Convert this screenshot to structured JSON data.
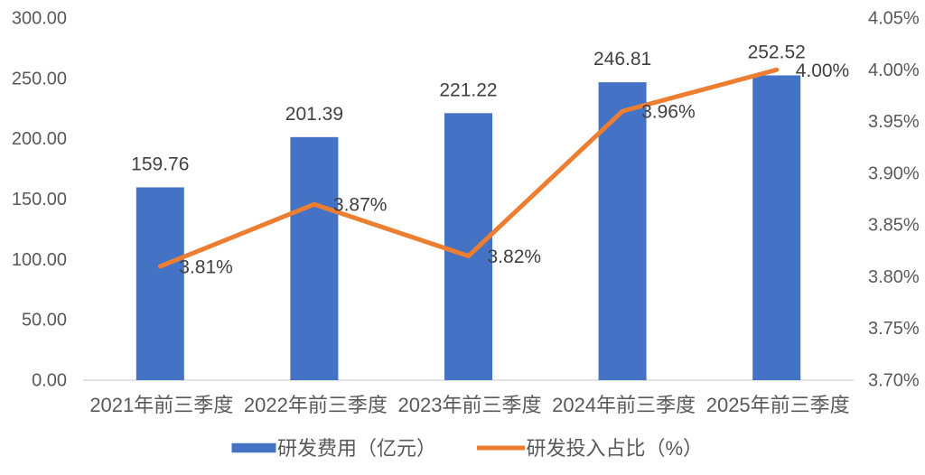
{
  "chart_data": {
    "type": "bar",
    "title": "",
    "categories": [
      "2021年前三季度",
      "2022年前三季度",
      "2023年前三季度",
      "2024年前三季度",
      "2025年前三季度"
    ],
    "series": [
      {
        "name": "研发费用（亿元）",
        "type": "bar",
        "axis": "left",
        "color": "#4472C4",
        "values": [
          159.76,
          201.39,
          221.22,
          246.81,
          252.52
        ],
        "labels": [
          "159.76",
          "201.39",
          "221.22",
          "246.81",
          "252.52"
        ]
      },
      {
        "name": "研发投入占比（%）",
        "type": "line",
        "axis": "right",
        "color": "#ED7D31",
        "values": [
          3.81,
          3.87,
          3.82,
          3.96,
          4.0
        ],
        "labels": [
          "3.81%",
          "3.87%",
          "3.82%",
          "3.96%",
          "4.00%"
        ]
      }
    ],
    "left_axis": {
      "min": 0,
      "max": 300,
      "step": 50,
      "tick_labels": [
        "300.00",
        "250.00",
        "200.00",
        "150.00",
        "100.00",
        "50.00",
        "0.00"
      ]
    },
    "right_axis": {
      "min": 3.7,
      "max": 4.05,
      "step": 0.05,
      "tick_labels": [
        "4.05%",
        "4.00%",
        "3.95%",
        "3.90%",
        "3.85%",
        "3.80%",
        "3.75%",
        "3.70%"
      ]
    },
    "grid": false,
    "legend_position": "bottom",
    "colors": {
      "background": "#FFFFFF",
      "axis_line": "#D9D9D9",
      "axis_text": "#595959",
      "data_label_text": "#404040",
      "legend_text": "#595959"
    }
  }
}
